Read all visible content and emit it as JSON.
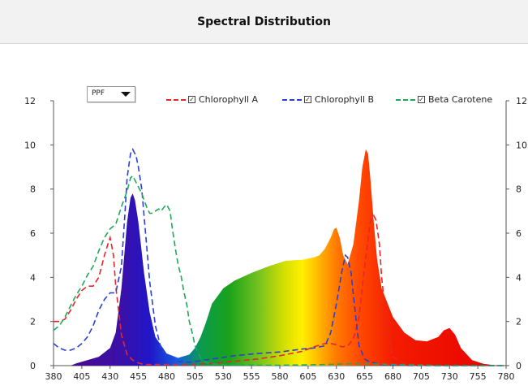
{
  "title": "Spectral Distribution",
  "dropdown": {
    "value": "PPF"
  },
  "legend": {
    "items": [
      {
        "label": "Chlorophyll A",
        "color": "#e8262a",
        "checked": "✓"
      },
      {
        "label": "Chlorophyll B",
        "color": "#2b3fd6",
        "checked": "✓"
      },
      {
        "label": "Beta Carotene",
        "color": "#1fa85a",
        "checked": "✓"
      }
    ]
  },
  "chart_data": {
    "type": "area",
    "xlabel": "",
    "ylabel": "",
    "xlim": [
      380,
      780
    ],
    "ylim": [
      0,
      12
    ],
    "grid": false,
    "legend_position": "top",
    "x_ticks": [
      "380",
      "405",
      "430",
      "455",
      "480",
      "505",
      "530",
      "555",
      "580",
      "605",
      "630",
      "655",
      "680",
      "705",
      "730",
      "755",
      "780"
    ],
    "y_ticks_left": [
      "0",
      "2",
      "4",
      "6",
      "8",
      "10",
      "12"
    ],
    "y_ticks_right": [
      "0",
      "2",
      "4",
      "6",
      "8",
      "10",
      "12"
    ],
    "spectrum": {
      "x": [
        395,
        400,
        410,
        420,
        430,
        435,
        440,
        445,
        448,
        450,
        452,
        455,
        460,
        465,
        470,
        480,
        490,
        500,
        505,
        510,
        515,
        520,
        530,
        540,
        555,
        570,
        585,
        600,
        610,
        615,
        620,
        625,
        628,
        630,
        633,
        636,
        640,
        645,
        650,
        653,
        656,
        658,
        660,
        663,
        666,
        670,
        680,
        690,
        700,
        710,
        720,
        725,
        730,
        735,
        740,
        750,
        760,
        770,
        775
      ],
      "y": [
        0,
        0.1,
        0.25,
        0.4,
        0.8,
        1.5,
        3.5,
        6.5,
        7.6,
        7.8,
        7.5,
        6.5,
        4.2,
        2.4,
        1.3,
        0.55,
        0.35,
        0.5,
        0.8,
        1.3,
        2.0,
        2.8,
        3.5,
        3.85,
        4.2,
        4.5,
        4.75,
        4.8,
        4.9,
        5.0,
        5.3,
        5.8,
        6.2,
        6.25,
        5.8,
        5.0,
        4.6,
        5.5,
        7.5,
        9.0,
        9.8,
        9.6,
        8.5,
        6.5,
        4.8,
        3.5,
        2.2,
        1.5,
        1.15,
        1.1,
        1.3,
        1.6,
        1.7,
        1.4,
        0.8,
        0.25,
        0.08,
        0.02,
        0
      ]
    },
    "series": [
      {
        "name": "Chlorophyll A",
        "color": "#e8262a",
        "x": [
          380,
          385,
          390,
          395,
          400,
          405,
          410,
          415,
          420,
          425,
          428,
          430,
          433,
          435,
          440,
          445,
          450,
          455,
          460,
          470,
          480,
          500,
          520,
          540,
          560,
          580,
          590,
          600,
          610,
          620,
          625,
          630,
          635,
          640,
          645,
          650,
          655,
          660,
          663,
          665,
          668,
          670,
          675,
          680,
          690,
          700,
          720,
          740,
          760,
          780
        ],
        "y": [
          2.0,
          2.0,
          2.1,
          2.5,
          3.0,
          3.4,
          3.6,
          3.6,
          4.0,
          5.0,
          5.5,
          5.8,
          5.0,
          3.6,
          1.4,
          0.5,
          0.25,
          0.12,
          0.05,
          0.05,
          0.05,
          0.05,
          0.1,
          0.2,
          0.3,
          0.45,
          0.55,
          0.65,
          0.85,
          1.0,
          1.0,
          0.95,
          0.85,
          0.9,
          1.2,
          2.2,
          4.5,
          6.5,
          6.8,
          6.6,
          5.5,
          4.0,
          1.5,
          0.4,
          0.1,
          0.05,
          0.0,
          0.0,
          0.0,
          0.0
        ]
      },
      {
        "name": "Chlorophyll B",
        "color": "#2b3fd6",
        "x": [
          380,
          385,
          390,
          395,
          400,
          405,
          410,
          415,
          420,
          425,
          430,
          435,
          440,
          443,
          445,
          448,
          450,
          453,
          455,
          458,
          460,
          463,
          465,
          470,
          475,
          480,
          490,
          500,
          520,
          540,
          560,
          580,
          600,
          610,
          620,
          625,
          630,
          635,
          638,
          640,
          643,
          645,
          648,
          650,
          655,
          660,
          670,
          680,
          700,
          720,
          740,
          760,
          780
        ],
        "y": [
          1.0,
          0.8,
          0.7,
          0.7,
          0.8,
          1.0,
          1.3,
          1.8,
          2.5,
          3.0,
          3.3,
          3.3,
          4.5,
          6.8,
          8.5,
          9.6,
          9.8,
          9.5,
          9.0,
          8.0,
          6.8,
          5.0,
          3.8,
          1.8,
          0.8,
          0.4,
          0.2,
          0.15,
          0.3,
          0.45,
          0.55,
          0.62,
          0.75,
          0.8,
          0.9,
          1.5,
          2.8,
          4.3,
          5.0,
          4.9,
          4.2,
          3.2,
          1.8,
          0.9,
          0.3,
          0.15,
          0.05,
          0.02,
          0.0,
          0.0,
          0.0,
          0.0,
          0.0
        ]
      },
      {
        "name": "Beta Carotene",
        "color": "#1fa85a",
        "x": [
          380,
          385,
          390,
          395,
          400,
          405,
          410,
          415,
          420,
          425,
          430,
          435,
          440,
          445,
          448,
          450,
          452,
          455,
          458,
          460,
          463,
          465,
          468,
          470,
          473,
          475,
          478,
          480,
          483,
          485,
          488,
          490,
          493,
          495,
          498,
          500,
          503,
          505,
          510,
          515,
          520,
          530,
          540,
          560,
          580,
          600,
          620,
          640,
          660,
          680,
          700,
          720,
          740,
          760,
          780
        ],
        "y": [
          1.6,
          1.8,
          2.2,
          2.7,
          3.2,
          3.6,
          4.1,
          4.5,
          5.2,
          5.8,
          6.2,
          6.4,
          7.2,
          7.9,
          8.5,
          8.6,
          8.4,
          8.1,
          7.8,
          7.5,
          7.1,
          6.9,
          6.9,
          7.0,
          7.1,
          7.0,
          7.2,
          7.3,
          7.0,
          6.2,
          5.2,
          4.6,
          4.0,
          3.4,
          2.7,
          2.0,
          1.4,
          0.9,
          0.35,
          0.15,
          0.08,
          0.04,
          0.03,
          0.02,
          0.02,
          0.03,
          0.05,
          0.08,
          0.08,
          0.05,
          0.02,
          0.0,
          0.0,
          0.0,
          0.0
        ]
      }
    ]
  }
}
